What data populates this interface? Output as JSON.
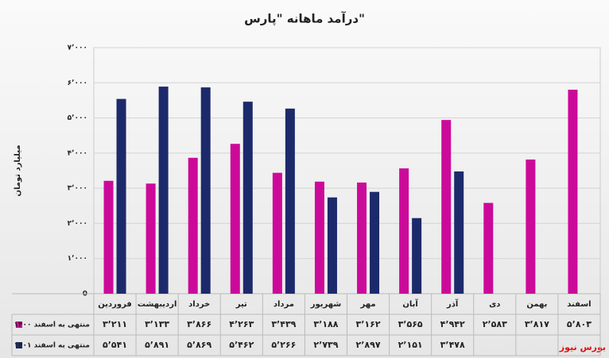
{
  "chart_data": {
    "type": "bar",
    "title": "درآمد ماهانه \"پارس\"",
    "y_label": "میلیارد تومان",
    "watermark": "بورس نیوز",
    "categories": [
      "فروردین",
      "اردیبهشت",
      "خرداد",
      "تیر",
      "مرداد",
      "شهریور",
      "مهر",
      "آبان",
      "آذر",
      "دی",
      "بهمن",
      "اسفند"
    ],
    "series": [
      {
        "name": "منتهی به اسفند ۱۴۰۰",
        "color": "#cc0a99",
        "values": [
          3211,
          3133,
          3866,
          4263,
          3439,
          3188,
          3162,
          3565,
          4942,
          2583,
          3817,
          5803
        ],
        "value_labels": [
          "۳٬۲۱۱",
          "۳٬۱۳۳",
          "۳٬۸۶۶",
          "۴٬۲۶۳",
          "۳٬۴۳۹",
          "۳٬۱۸۸",
          "۳٬۱۶۲",
          "۳٬۵۶۵",
          "۴٬۹۴۲",
          "۲٬۵۸۳",
          "۳٬۸۱۷",
          "۵٬۸۰۳"
        ]
      },
      {
        "name": "منتهی به اسفند ۱۴۰۱",
        "color": "#1c2a6b",
        "values": [
          5541,
          5891,
          5869,
          5462,
          5266,
          2739,
          2897,
          2151,
          3478,
          null,
          null,
          null
        ],
        "value_labels": [
          "۵٬۵۴۱",
          "۵٬۸۹۱",
          "۵٬۸۶۹",
          "۵٬۴۶۲",
          "۵٬۲۶۶",
          "۲٬۷۳۹",
          "۲٬۸۹۷",
          "۲٬۱۵۱",
          "۳٬۴۷۸",
          null,
          null,
          null
        ]
      }
    ],
    "ylim": [
      0,
      7000
    ],
    "yticks": [
      0,
      {
        "value": 1000,
        "label": "۱٬۰۰۰"
      },
      {
        "value": 2000,
        "label": "۲٬۰۰۰"
      },
      {
        "value": 3000,
        "label": "۳٬۰۰۰"
      },
      {
        "value": 4000,
        "label": "۴٬۰۰۰"
      },
      {
        "value": 5000,
        "label": "۵٬۰۰۰"
      },
      {
        "value": 6000,
        "label": "۶٬۰۰۰"
      },
      {
        "value": 7000,
        "label": "۷٬۰۰۰"
      }
    ],
    "grid": true
  }
}
